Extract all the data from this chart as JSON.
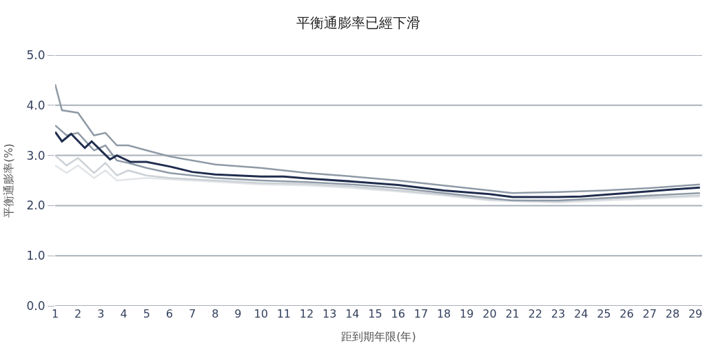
{
  "chart_data": {
    "type": "line",
    "title": "平衡通膨率已經下滑",
    "xlabel": "距到期年限(年)",
    "ylabel": "平衡通膨率(%)",
    "xlim": [
      1,
      29.3
    ],
    "xticks": [
      1,
      2,
      3,
      4,
      5,
      6,
      7,
      8,
      9,
      10,
      11,
      12,
      13,
      14,
      15,
      16,
      17,
      18,
      19,
      20,
      21,
      22,
      23,
      24,
      25,
      26,
      27,
      28,
      29
    ],
    "ylim": [
      0,
      5.0
    ],
    "yticks": [
      {
        "value": 0,
        "label": "0.0"
      },
      {
        "value": 1,
        "label": "1.0"
      },
      {
        "value": 2,
        "label": "2.0"
      },
      {
        "value": 3,
        "label": "3.0"
      },
      {
        "value": 4,
        "label": "4.0"
      },
      {
        "value": 5,
        "label": "5.0"
      }
    ],
    "grid": "y",
    "marker": "none",
    "line_style": "solid",
    "series": [
      {
        "color": "#e2e5e8",
        "x": [
          1,
          1.5,
          2,
          2.7,
          3.2,
          3.7,
          5,
          7,
          10,
          12,
          14,
          16,
          18,
          20,
          23,
          26,
          29.2
        ],
        "values": [
          2.8,
          2.65,
          2.8,
          2.55,
          2.7,
          2.5,
          2.55,
          2.5,
          2.42,
          2.4,
          2.35,
          2.28,
          2.2,
          2.1,
          2.06,
          2.12,
          2.18
        ]
      },
      {
        "color": "#ccd1d6",
        "x": [
          1,
          1.5,
          2,
          2.7,
          3.2,
          3.7,
          4.2,
          5,
          6,
          8,
          10,
          12,
          14,
          16,
          18,
          20,
          23,
          26,
          29.2
        ],
        "values": [
          3.0,
          2.8,
          2.95,
          2.65,
          2.85,
          2.6,
          2.7,
          2.6,
          2.55,
          2.5,
          2.45,
          2.43,
          2.38,
          2.3,
          2.22,
          2.12,
          2.08,
          2.15,
          2.2
        ]
      },
      {
        "color": "#8e9aa6",
        "x": [
          1,
          1.5,
          2,
          2.7,
          3.2,
          3.7,
          4.2,
          5,
          6,
          8,
          10,
          12,
          14,
          16,
          18,
          20,
          21,
          23,
          25,
          27,
          29.2
        ],
        "values": [
          3.6,
          3.4,
          3.45,
          3.1,
          3.2,
          2.9,
          2.85,
          2.75,
          2.65,
          2.55,
          2.5,
          2.47,
          2.42,
          2.35,
          2.25,
          2.15,
          2.1,
          2.1,
          2.15,
          2.2,
          2.25
        ]
      },
      {
        "color": "#8e9aa6",
        "x": [
          1,
          1.3,
          2,
          2.7,
          3.2,
          3.7,
          4.2,
          5,
          6,
          8,
          10,
          12,
          14,
          16,
          18,
          20,
          21,
          23,
          25,
          27,
          29.2
        ],
        "values": [
          4.42,
          3.9,
          3.85,
          3.4,
          3.45,
          3.2,
          3.2,
          3.1,
          2.98,
          2.82,
          2.75,
          2.65,
          2.58,
          2.5,
          2.4,
          2.3,
          2.25,
          2.27,
          2.3,
          2.35,
          2.42
        ]
      },
      {
        "color": "#1f2d4e",
        "x": [
          1,
          1.3,
          1.7,
          2.3,
          2.6,
          3.0,
          3.4,
          3.7,
          4.3,
          5,
          6,
          7,
          8,
          9,
          10,
          11,
          12,
          14,
          16,
          18,
          20,
          21,
          23,
          24,
          26,
          28,
          29.2
        ],
        "values": [
          3.47,
          3.28,
          3.43,
          3.15,
          3.28,
          3.1,
          2.92,
          3.0,
          2.87,
          2.87,
          2.78,
          2.67,
          2.62,
          2.6,
          2.58,
          2.58,
          2.54,
          2.48,
          2.41,
          2.3,
          2.23,
          2.17,
          2.17,
          2.18,
          2.25,
          2.32,
          2.36
        ]
      }
    ]
  }
}
